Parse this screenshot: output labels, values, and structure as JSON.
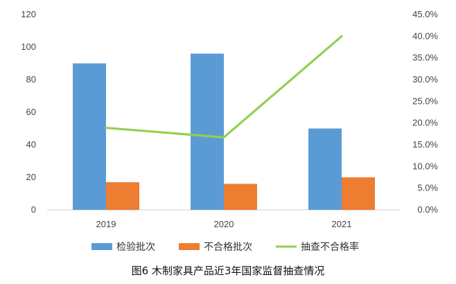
{
  "chart_data": {
    "type": "bar",
    "title": "",
    "caption": "图6 木制家具产品近3年国家监督抽查情况",
    "categories": [
      "2019",
      "2020",
      "2021"
    ],
    "series": [
      {
        "name": "检验批次",
        "kind": "bar",
        "axis": "left",
        "color": "#5B9BD5",
        "values": [
          90,
          96,
          50
        ]
      },
      {
        "name": "不合格批次",
        "kind": "bar",
        "axis": "left",
        "color": "#ED7D31",
        "values": [
          17,
          16,
          20
        ]
      },
      {
        "name": "抽查不合格率",
        "kind": "line",
        "axis": "right",
        "color": "#92D050",
        "values": [
          0.189,
          0.167,
          0.4
        ]
      }
    ],
    "y_left": {
      "min": 0,
      "max": 120,
      "step": 20,
      "tick_labels": [
        "0",
        "20",
        "40",
        "60",
        "80",
        "100",
        "120"
      ]
    },
    "y_right": {
      "min": 0,
      "max": 0.45,
      "step": 0.05,
      "tick_labels": [
        "0.0%",
        "5.0%",
        "10.0%",
        "15.0%",
        "20.0%",
        "25.0%",
        "30.0%",
        "35.0%",
        "40.0%",
        "45.0%"
      ]
    },
    "grid": false,
    "legend_position": "bottom"
  }
}
